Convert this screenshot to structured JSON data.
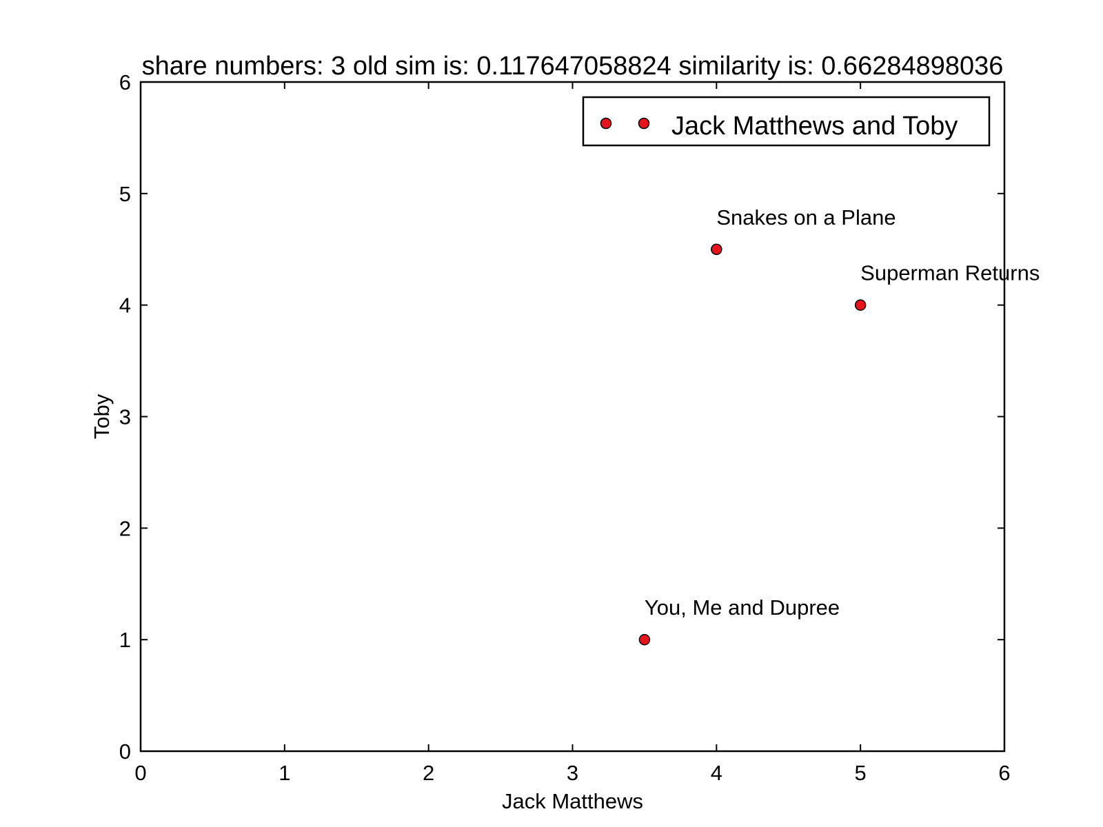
{
  "chart_data": {
    "type": "scatter",
    "title": "share numbers: 3 old sim is: 0.117647058824 similarity is: 0.66284898036",
    "xlabel": "Jack Matthews",
    "ylabel": "Toby",
    "xlim": [
      0,
      6
    ],
    "ylim": [
      0,
      6
    ],
    "xticks": [
      "0",
      "1",
      "2",
      "3",
      "4",
      "5",
      "6"
    ],
    "yticks": [
      "0",
      "1",
      "2",
      "3",
      "4",
      "5",
      "6"
    ],
    "grid": false,
    "legend": {
      "placement": "top-right",
      "entries": [
        "Jack Matthews and Toby"
      ]
    },
    "series": [
      {
        "name": "Jack Matthews and Toby",
        "color": "#e8141c",
        "points": [
          {
            "x": 4,
            "y": 4.5,
            "label": "Snakes on a Plane"
          },
          {
            "x": 5,
            "y": 4,
            "label": "Superman Returns"
          },
          {
            "x": 3.5,
            "y": 1,
            "label": "You, Me and Dupree"
          }
        ]
      }
    ]
  }
}
